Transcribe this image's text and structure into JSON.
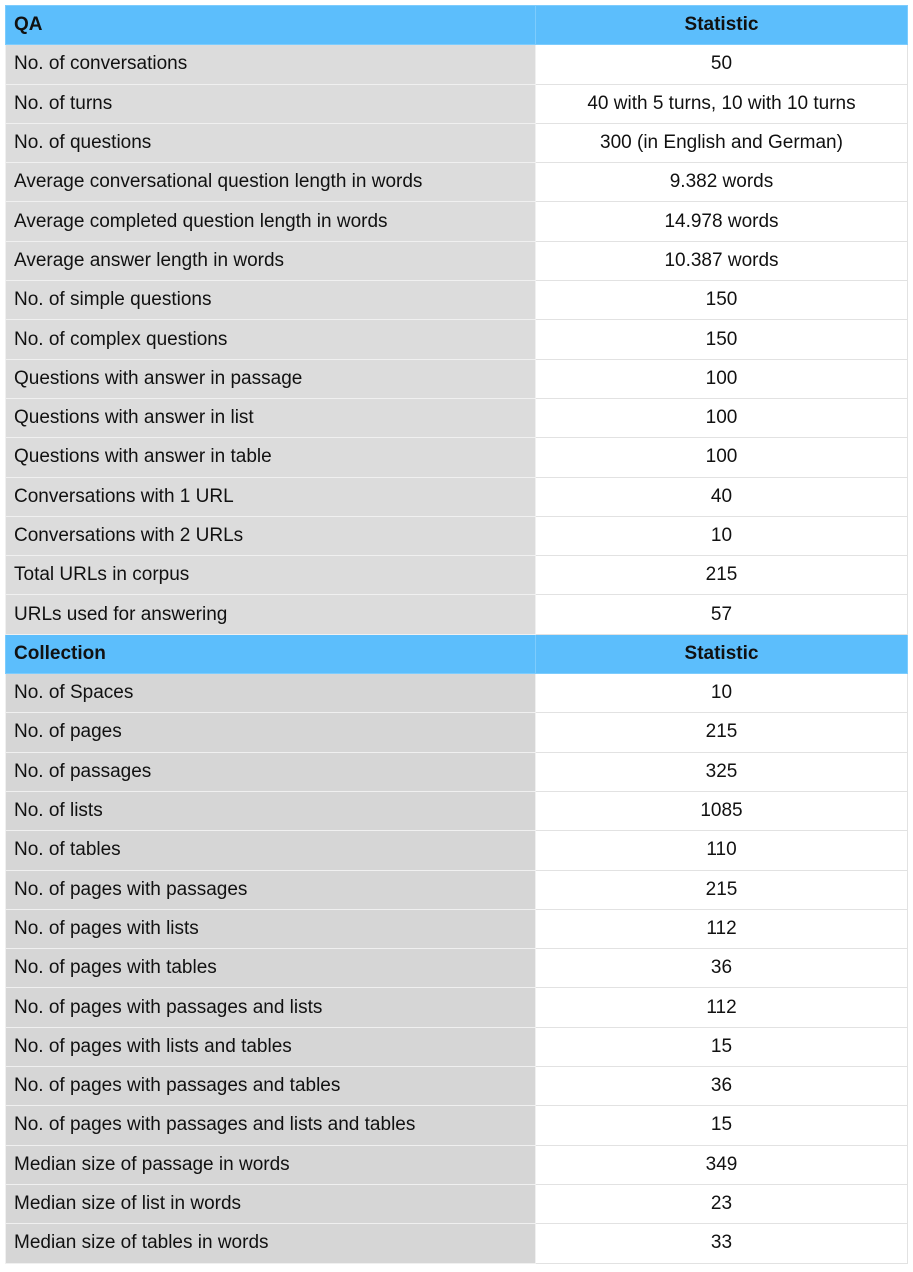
{
  "qa_section": {
    "header_label": "QA",
    "header_stat": "Statistic",
    "rows": [
      {
        "label": "No. of conversations",
        "value": "50"
      },
      {
        "label": "No. of turns",
        "value": "40 with 5 turns, 10 with 10 turns"
      },
      {
        "label": "No. of questions",
        "value": "300 (in English and German)"
      },
      {
        "label": "Average conversational question length in words",
        "value": "9.382 words"
      },
      {
        "label": "Average completed question length in words",
        "value": "14.978 words"
      },
      {
        "label": "Average answer length in words",
        "value": "10.387 words"
      },
      {
        "label": "No. of simple questions",
        "value": "150"
      },
      {
        "label": "No. of complex questions",
        "value": "150"
      },
      {
        "label": "Questions with answer in passage",
        "value": "100"
      },
      {
        "label": "Questions with answer in list",
        "value": "100"
      },
      {
        "label": "Questions with answer in table",
        "value": "100"
      },
      {
        "label": "Conversations with 1 URL",
        "value": "40"
      },
      {
        "label": "Conversations with 2 URLs",
        "value": "10"
      },
      {
        "label": "Total URLs in corpus",
        "value": "215"
      },
      {
        "label": "URLs used for answering",
        "value": "57"
      }
    ]
  },
  "collection_section": {
    "header_label": "Collection",
    "header_stat": "Statistic",
    "rows": [
      {
        "label": "No. of Spaces",
        "value": "10"
      },
      {
        "label": "No. of pages",
        "value": "215"
      },
      {
        "label": "No. of passages",
        "value": "325"
      },
      {
        "label": "No. of lists",
        "value": "1085"
      },
      {
        "label": "No. of tables",
        "value": "110"
      },
      {
        "label": "No. of pages with passages",
        "value": "215"
      },
      {
        "label": "No. of pages with lists",
        "value": "112"
      },
      {
        "label": "No. of pages with tables",
        "value": "36"
      },
      {
        "label": "No. of pages with passages and lists",
        "value": "112"
      },
      {
        "label": "No. of pages with lists and tables",
        "value": "15"
      },
      {
        "label": "No. of pages with passages and tables",
        "value": "36"
      },
      {
        "label": "No. of pages with passages and lists and tables",
        "value": "15"
      },
      {
        "label": "Median size of passage in words",
        "value": "349"
      },
      {
        "label": "Median size of list in words",
        "value": "23"
      },
      {
        "label": "Median size of tables in words",
        "value": "33"
      }
    ]
  },
  "colors": {
    "header_bg": "#5cbefc",
    "label_cell_bg": "#dcdcdc",
    "value_cell_bg": "#ffffff"
  }
}
